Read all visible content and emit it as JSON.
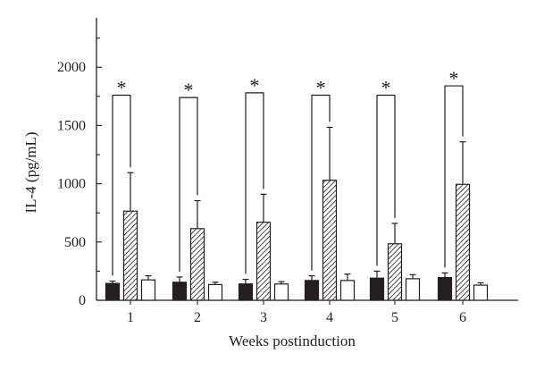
{
  "chart_data": {
    "type": "bar",
    "title": "",
    "xlabel": "Weeks postinduction",
    "ylabel": "IL-4 (pg/mL)",
    "ylim": [
      0,
      2500
    ],
    "yticks": [
      "0",
      "500",
      "1000",
      "1500",
      "2000"
    ],
    "categories": [
      "1",
      "2",
      "3",
      "4",
      "5",
      "6"
    ],
    "series": [
      {
        "fill": "solid-black",
        "values": [
          145,
          155,
          140,
          170,
          190,
          195
        ],
        "error": [
          20,
          45,
          40,
          40,
          60,
          40
        ]
      },
      {
        "fill": "hatched",
        "values": [
          765,
          615,
          670,
          1030,
          485,
          995
        ],
        "error": [
          330,
          240,
          240,
          455,
          175,
          365
        ]
      },
      {
        "fill": "white",
        "values": [
          175,
          135,
          140,
          170,
          185,
          130
        ],
        "error": [
          35,
          20,
          20,
          55,
          35,
          20
        ]
      }
    ],
    "significance": {
      "label": "*",
      "bracket_tops": [
        1760,
        1740,
        1780,
        1760,
        1760,
        1840
      ]
    },
    "grid": false,
    "legend": "none"
  }
}
